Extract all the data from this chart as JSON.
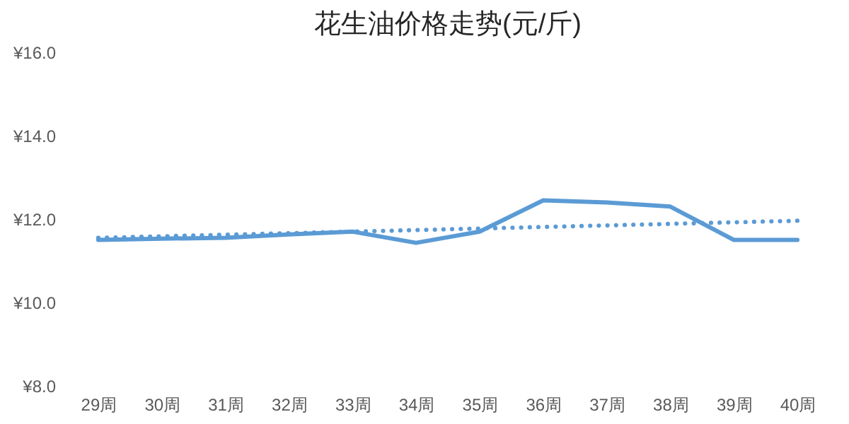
{
  "chart_data": {
    "type": "line",
    "title": "花生油价格走势(元/斤)",
    "categories": [
      "29周",
      "30周",
      "31周",
      "32周",
      "33周",
      "34周",
      "35周",
      "36周",
      "37周",
      "38周",
      "39周",
      "40周"
    ],
    "series": [
      {
        "color": "#5b9bd5",
        "line_style": "solid",
        "values": [
          11.5,
          11.53,
          11.55,
          11.63,
          11.7,
          11.43,
          11.7,
          12.45,
          12.4,
          12.3,
          11.5,
          11.5
        ]
      },
      {
        "type": "line",
        "color": "#5b9bd5",
        "line_style": "dotted",
        "x": [
          "29周",
          "40周"
        ],
        "values": [
          11.55,
          11.96
        ]
      }
    ],
    "ylim": [
      8,
      16
    ],
    "yticks": [
      {
        "value": 8,
        "label": "¥8.0"
      },
      {
        "value": 10,
        "label": "¥10.0"
      },
      {
        "value": 12,
        "label": "¥12.0"
      },
      {
        "value": 14,
        "label": "¥14.0"
      },
      {
        "value": 16,
        "label": "¥16.0"
      }
    ],
    "grid": false
  }
}
